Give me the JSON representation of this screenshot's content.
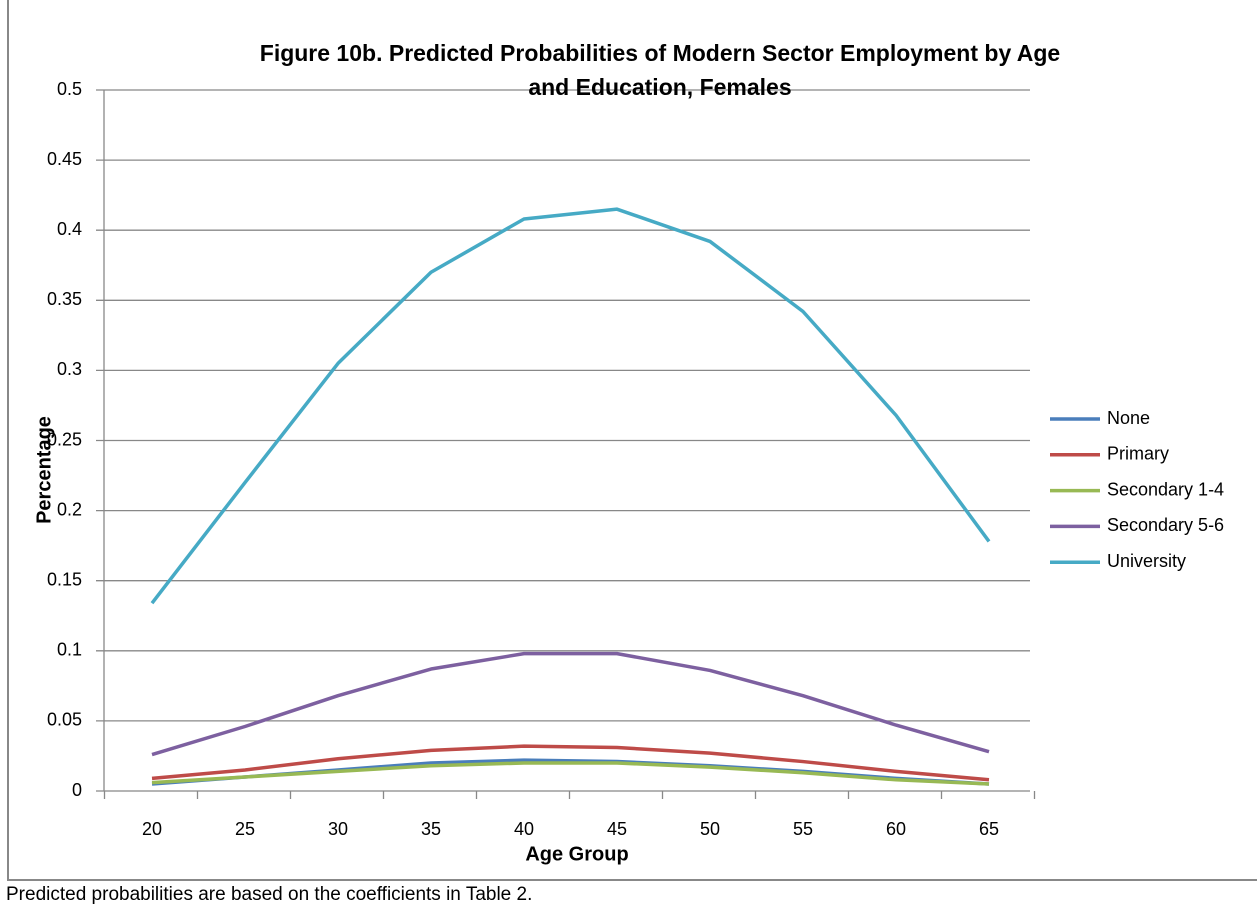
{
  "chart_data": {
    "type": "line",
    "title": "Figure 10b. Predicted Probabilities of Modern Sector Employment by Age and Education, Females",
    "x_label": "Age Group",
    "y_label": "Percentage",
    "categories": [
      "20",
      "25",
      "30",
      "35",
      "40",
      "45",
      "50",
      "55",
      "60",
      "65"
    ],
    "series": [
      {
        "name": "None",
        "color": "#4a7ebb",
        "values": [
          0.005,
          0.01,
          0.015,
          0.02,
          0.022,
          0.021,
          0.018,
          0.014,
          0.009,
          0.005
        ]
      },
      {
        "name": "Primary",
        "color": "#be4b48",
        "values": [
          0.009,
          0.015,
          0.023,
          0.029,
          0.032,
          0.031,
          0.027,
          0.021,
          0.014,
          0.008
        ]
      },
      {
        "name": "Secondary 1-4",
        "color": "#98b954",
        "values": [
          0.006,
          0.01,
          0.014,
          0.018,
          0.02,
          0.02,
          0.017,
          0.013,
          0.008,
          0.005
        ]
      },
      {
        "name": "Secondary 5-6",
        "color": "#7d60a0",
        "values": [
          0.026,
          0.046,
          0.068,
          0.087,
          0.098,
          0.098,
          0.086,
          0.068,
          0.047,
          0.028
        ]
      },
      {
        "name": "University",
        "color": "#46aac5",
        "values": [
          0.134,
          0.22,
          0.305,
          0.37,
          0.408,
          0.415,
          0.392,
          0.342,
          0.268,
          0.178
        ]
      }
    ],
    "ylim": [
      0,
      0.5
    ],
    "yticks": [
      0,
      0.05,
      0.1,
      0.15,
      0.2,
      0.25,
      0.3,
      0.35,
      0.4,
      0.45,
      0.5
    ],
    "grid": true,
    "legend": "right",
    "note": "Predicted probabilities are based on the coefficients in Table 2."
  }
}
